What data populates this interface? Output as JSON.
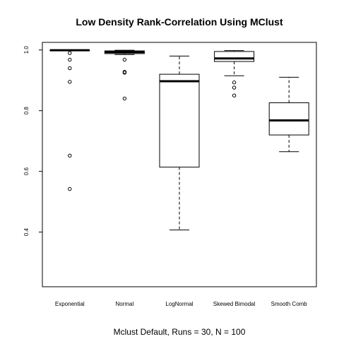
{
  "chart_data": {
    "type": "box",
    "title": "Low Density Rank-Correlation Using MClust",
    "xlabel": "Mclust Default, Runs = 30, N = 100",
    "ylabel": "",
    "ylim": [
      0.22,
      1.025
    ],
    "yticks": [
      0.4,
      0.6,
      0.8,
      1.0
    ],
    "ytick_labels": [
      "0.4",
      "0.6",
      "0.8",
      "1.0"
    ],
    "grid": false,
    "categories": [
      "Exponential",
      "Normal",
      "LogNormal",
      "Skewed Bimodal",
      "Smooth Comb"
    ],
    "boxes": [
      {
        "whisker_low": 0.998,
        "q1": 0.998,
        "median": 0.999,
        "q3": 0.999,
        "whisker_high": 1.0,
        "outliers": [
          0.99,
          0.968,
          0.94,
          0.895,
          0.652,
          0.542
        ]
      },
      {
        "whisker_low": 0.985,
        "q1": 0.988,
        "median": 0.993,
        "q3": 0.997,
        "whisker_high": 0.999,
        "outliers": [
          0.968,
          0.928,
          0.925,
          0.84
        ]
      },
      {
        "whisker_low": 0.407,
        "q1": 0.614,
        "median": 0.897,
        "q3": 0.92,
        "whisker_high": 0.98,
        "outliers": []
      },
      {
        "whisker_low": 0.915,
        "q1": 0.962,
        "median": 0.972,
        "q3": 0.995,
        "whisker_high": 0.998,
        "outliers": [
          0.893,
          0.876,
          0.85
        ]
      },
      {
        "whisker_low": 0.665,
        "q1": 0.72,
        "median": 0.768,
        "q3": 0.826,
        "whisker_high": 0.91,
        "outliers": []
      }
    ]
  }
}
